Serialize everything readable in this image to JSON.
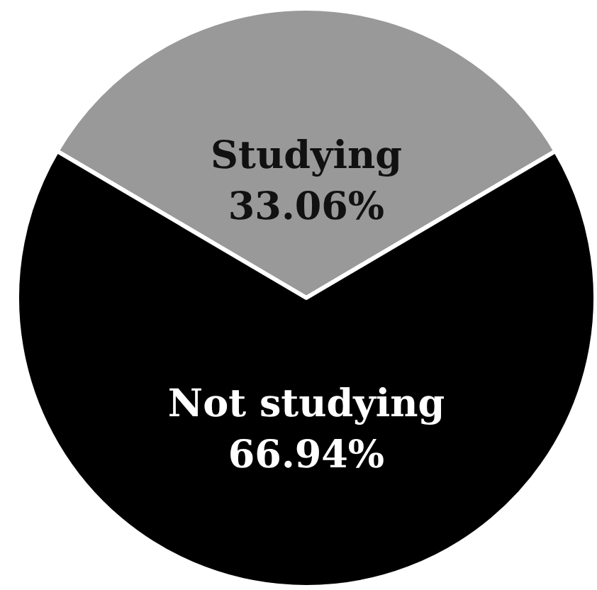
{
  "chart_data": {
    "type": "pie",
    "categories": [
      "Studying",
      "Not studying"
    ],
    "values": [
      33.06,
      66.94
    ],
    "colors": [
      "#999999",
      "#000000"
    ],
    "value_labels": [
      "33.06%",
      "66.94%"
    ],
    "legend": false
  }
}
